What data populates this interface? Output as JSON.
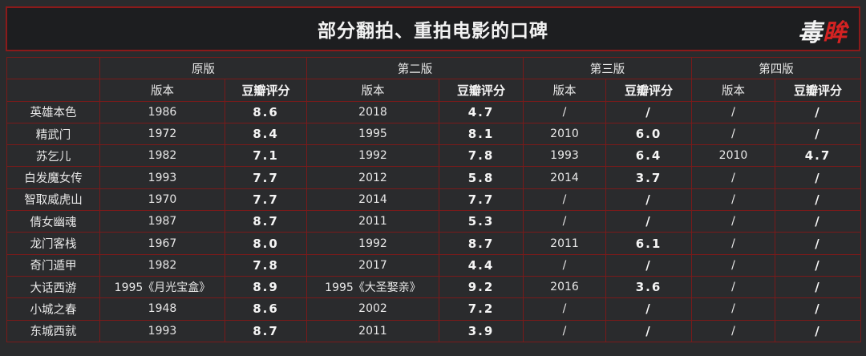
{
  "title": "部分翻拍、重拍电影的口碑",
  "logo": {
    "part1": "毒",
    "part2": "眸"
  },
  "versions": [
    "原版",
    "第二版",
    "第三版",
    "第四版"
  ],
  "sub_headers": {
    "year": "版本",
    "score": "豆瓣评分"
  },
  "rows": [
    {
      "name": "英雄本色",
      "v": [
        [
          "1986",
          "8.6"
        ],
        [
          "2018",
          "4.7"
        ],
        [
          "/",
          "/"
        ],
        [
          "/",
          "/"
        ]
      ]
    },
    {
      "name": "精武门",
      "v": [
        [
          "1972",
          "8.4"
        ],
        [
          "1995",
          "8.1"
        ],
        [
          "2010",
          "6.0"
        ],
        [
          "/",
          "/"
        ]
      ]
    },
    {
      "name": "苏乞儿",
      "v": [
        [
          "1982",
          "7.1"
        ],
        [
          "1992",
          "7.8"
        ],
        [
          "1993",
          "6.4"
        ],
        [
          "2010",
          "4.7"
        ]
      ]
    },
    {
      "name": "白发魔女传",
      "v": [
        [
          "1993",
          "7.7"
        ],
        [
          "2012",
          "5.8"
        ],
        [
          "2014",
          "3.7"
        ],
        [
          "/",
          "/"
        ]
      ]
    },
    {
      "name": "智取威虎山",
      "v": [
        [
          "1970",
          "7.7"
        ],
        [
          "2014",
          "7.7"
        ],
        [
          "/",
          "/"
        ],
        [
          "/",
          "/"
        ]
      ]
    },
    {
      "name": "倩女幽魂",
      "v": [
        [
          "1987",
          "8.7"
        ],
        [
          "2011",
          "5.3"
        ],
        [
          "/",
          "/"
        ],
        [
          "/",
          "/"
        ]
      ]
    },
    {
      "name": "龙门客栈",
      "v": [
        [
          "1967",
          "8.0"
        ],
        [
          "1992",
          "8.7"
        ],
        [
          "2011",
          "6.1"
        ],
        [
          "/",
          "/"
        ]
      ]
    },
    {
      "name": "奇门遁甲",
      "v": [
        [
          "1982",
          "7.8"
        ],
        [
          "2017",
          "4.4"
        ],
        [
          "/",
          "/"
        ],
        [
          "/",
          "/"
        ]
      ]
    },
    {
      "name": "大话西游",
      "v": [
        [
          "1995《月光宝盒》",
          "8.9"
        ],
        [
          "1995《大圣娶亲》",
          "9.2"
        ],
        [
          "2016",
          "3.6"
        ],
        [
          "/",
          "/"
        ]
      ]
    },
    {
      "name": "小城之春",
      "v": [
        [
          "1948",
          "8.6"
        ],
        [
          "2002",
          "7.2"
        ],
        [
          "/",
          "/"
        ],
        [
          "/",
          "/"
        ]
      ]
    },
    {
      "name": "东城西就",
      "v": [
        [
          "1993",
          "8.7"
        ],
        [
          "2011",
          "3.9"
        ],
        [
          "/",
          "/"
        ],
        [
          "/",
          "/"
        ]
      ]
    }
  ]
}
